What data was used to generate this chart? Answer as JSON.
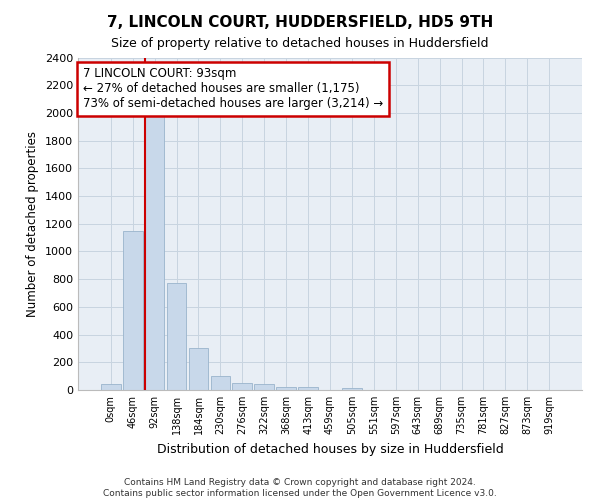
{
  "title": "7, LINCOLN COURT, HUDDERSFIELD, HD5 9TH",
  "subtitle": "Size of property relative to detached houses in Huddersfield",
  "xlabel": "Distribution of detached houses by size in Huddersfield",
  "ylabel": "Number of detached properties",
  "footer_line1": "Contains HM Land Registry data © Crown copyright and database right 2024.",
  "footer_line2": "Contains public sector information licensed under the Open Government Licence v3.0.",
  "bar_color": "#c8d8ea",
  "bar_edge_color": "#9ab4cc",
  "grid_color": "#c8d4e0",
  "background_color": "#e8eef5",
  "annotation_box_color": "#cc0000",
  "property_line_color": "#cc0000",
  "annotation_text_line1": "7 LINCOLN COURT: 93sqm",
  "annotation_text_line2": "← 27% of detached houses are smaller (1,175)",
  "annotation_text_line3": "73% of semi-detached houses are larger (3,214) →",
  "categories": [
    "0sqm",
    "46sqm",
    "92sqm",
    "138sqm",
    "184sqm",
    "230sqm",
    "276sqm",
    "322sqm",
    "368sqm",
    "413sqm",
    "459sqm",
    "505sqm",
    "551sqm",
    "597sqm",
    "643sqm",
    "689sqm",
    "735sqm",
    "781sqm",
    "827sqm",
    "873sqm",
    "919sqm"
  ],
  "values": [
    40,
    1150,
    1975,
    775,
    300,
    100,
    50,
    40,
    20,
    20,
    0,
    15,
    0,
    0,
    0,
    0,
    0,
    0,
    0,
    0,
    0
  ],
  "ylim": [
    0,
    2400
  ],
  "yticks": [
    0,
    200,
    400,
    600,
    800,
    1000,
    1200,
    1400,
    1600,
    1800,
    2000,
    2200,
    2400
  ],
  "vline_bar_index": 2
}
